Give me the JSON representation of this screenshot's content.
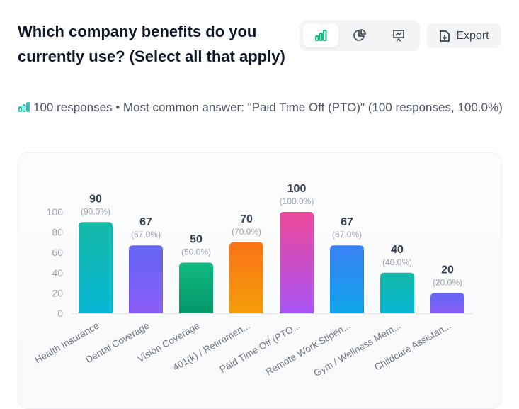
{
  "question": "Which company benefits do you currently use? (Select all that apply)",
  "toolbar": {
    "views": [
      {
        "icon": "bar-chart-icon",
        "active": true
      },
      {
        "icon": "pie-chart-icon",
        "active": false
      },
      {
        "icon": "presentation-chart-icon",
        "active": false
      }
    ],
    "export_label": "Export"
  },
  "summary": "100 responses • Most common answer: \"Paid Time Off (PTO)\" (100 responses, 100.0%)",
  "chart_data": {
    "type": "bar",
    "categories": [
      "Health Insurance",
      "Dental Coverage",
      "Vision Coverage",
      "401(k) / Retiremen...",
      "Paid Time Off (PTO...",
      "Remote Work Stipen...",
      "Gym / Wellness Mem...",
      "Childcare Assistan..."
    ],
    "values": [
      90,
      67,
      50,
      70,
      100,
      67,
      40,
      20
    ],
    "value_labels": [
      "90",
      "67",
      "50",
      "70",
      "100",
      "67",
      "40",
      "20"
    ],
    "percent_labels": [
      "(90.0%)",
      "(67.0%)",
      "(50.0%)",
      "(70.0%)",
      "(100.0%)",
      "(67.0%)",
      "(40.0%)",
      "(20.0%)"
    ],
    "colors": [
      [
        "#14b8a6",
        "#06b6d4"
      ],
      [
        "#6366f1",
        "#8b5cf6"
      ],
      [
        "#10b981",
        "#059669"
      ],
      [
        "#f97316",
        "#f59e0b"
      ],
      [
        "#ec4899",
        "#a855f7"
      ],
      [
        "#3b82f6",
        "#0ea5e9"
      ],
      [
        "#14b8a6",
        "#06b6d4"
      ],
      [
        "#6366f1",
        "#8b5cf6"
      ]
    ],
    "yticks": [
      "0",
      "20",
      "40",
      "60",
      "80",
      "100"
    ],
    "ylim": [
      0,
      100
    ],
    "grid": false,
    "title": "",
    "xlabel": "",
    "ylabel": ""
  }
}
